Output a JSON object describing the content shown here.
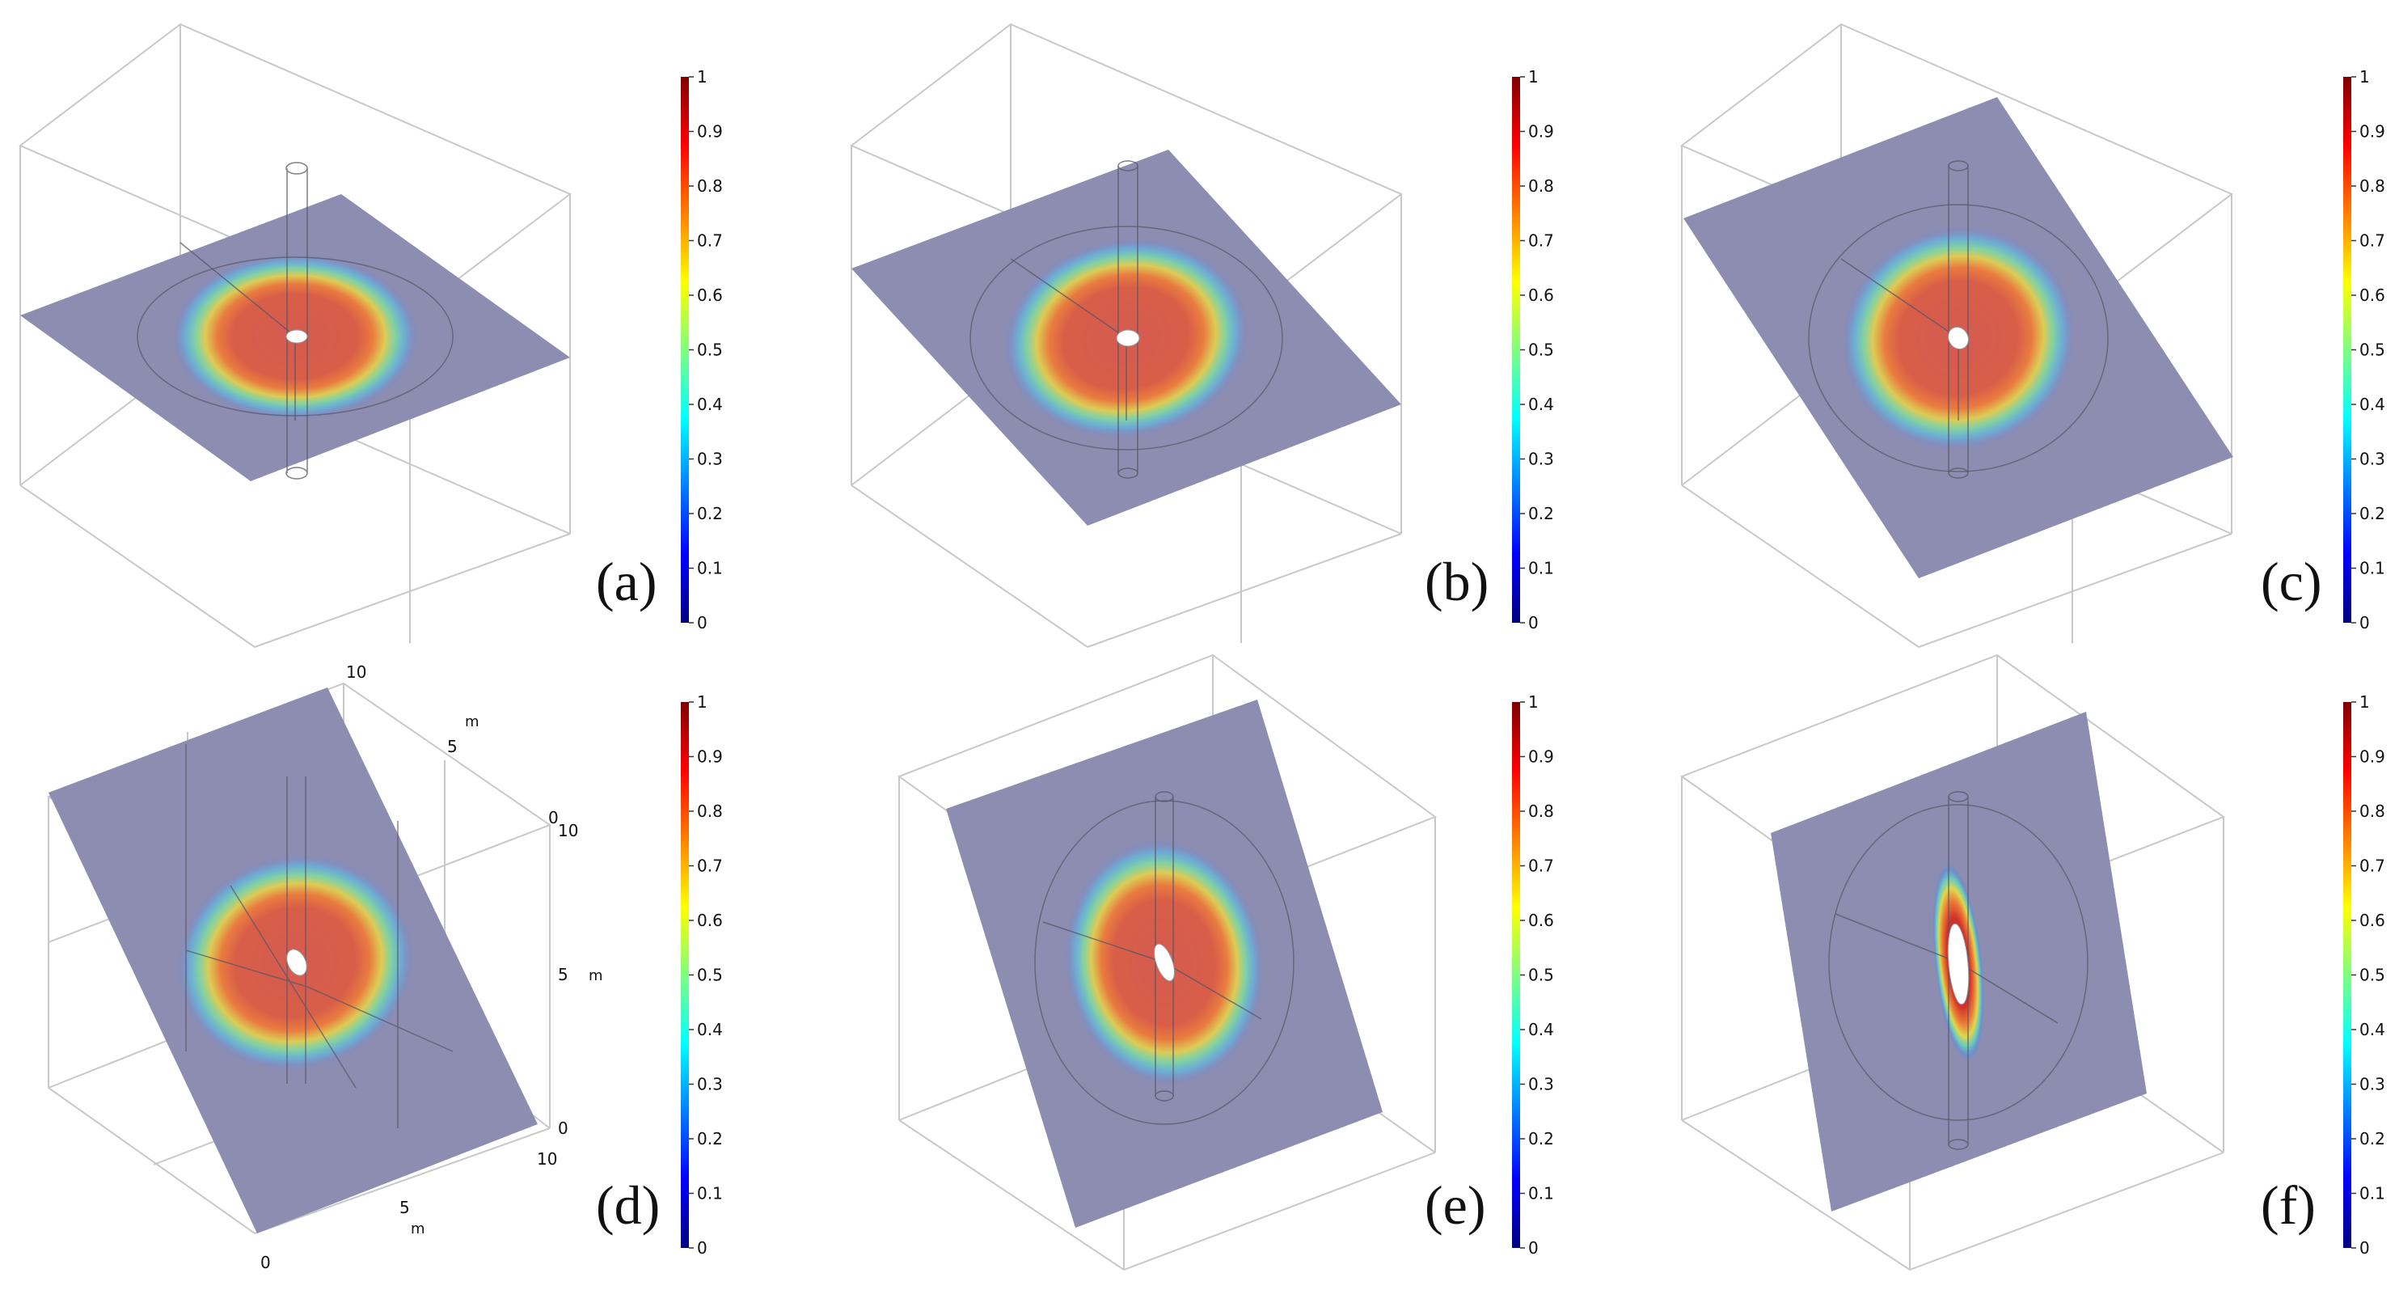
{
  "colorbar": {
    "ticks": [
      "1",
      "0.9",
      "0.8",
      "0.7",
      "0.6",
      "0.5",
      "0.4",
      "0.3",
      "0.2",
      "0.1",
      "0"
    ],
    "colors": [
      "#00007f",
      "#0000ff",
      "#007fff",
      "#00ffff",
      "#7fff7f",
      "#ffff00",
      "#ff7f00",
      "#ff0000",
      "#7f0000"
    ]
  },
  "colors": {
    "plane": "#8c8db0",
    "box_edge": "#c8c8c8",
    "inner_line": "#555566",
    "well": "#ffffff"
  },
  "panels": [
    {
      "id": "a",
      "label": "(a)"
    },
    {
      "id": "b",
      "label": "(b)"
    },
    {
      "id": "c",
      "label": "(c)"
    },
    {
      "id": "d",
      "label": "(d)",
      "axes": {
        "z_ticks": [
          "10",
          "5",
          "0"
        ],
        "z_unit": "m",
        "y_ticks": [
          "0",
          "5",
          "10"
        ],
        "y_unit": "m",
        "x_ticks": [
          "0",
          "5",
          "10"
        ],
        "x_unit": "m"
      }
    },
    {
      "id": "e",
      "label": "(e)"
    },
    {
      "id": "f",
      "label": "(f)"
    }
  ]
}
